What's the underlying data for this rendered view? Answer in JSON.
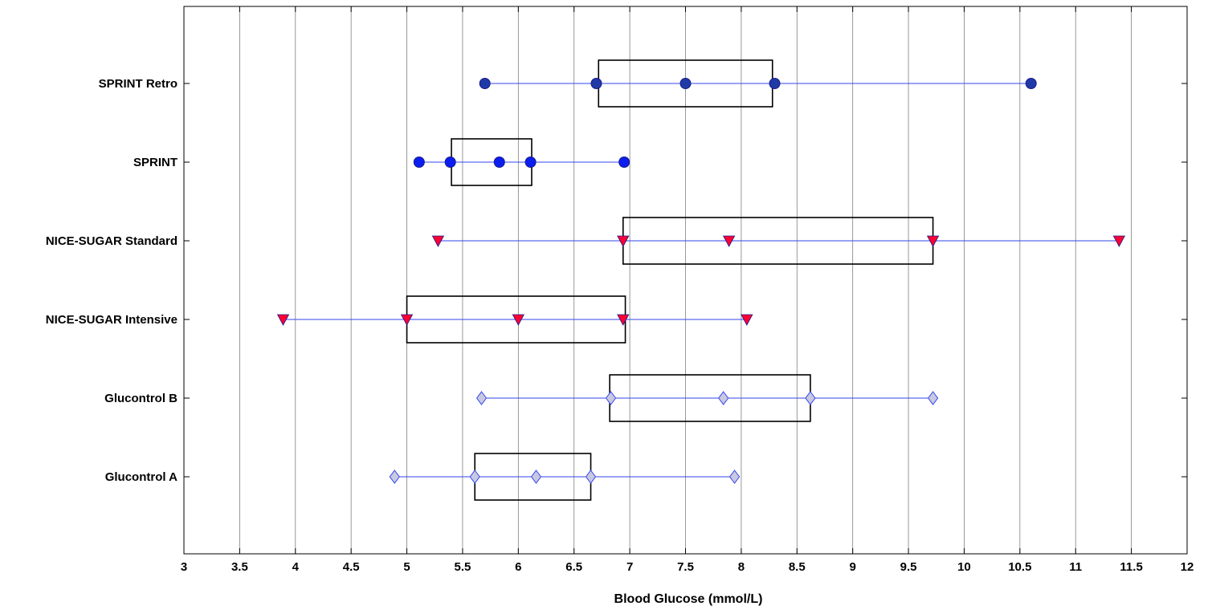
{
  "chart_data": {
    "type": "box",
    "xlabel": "Blood Glucose (mmol/L)",
    "xlim": [
      3,
      12
    ],
    "x_ticks": [
      3,
      3.5,
      4,
      4.5,
      5,
      5.5,
      6,
      6.5,
      7,
      7.5,
      8,
      8.5,
      9,
      9.5,
      10,
      10.5,
      11,
      11.5,
      12
    ],
    "x_tick_labels": [
      "3",
      "3.5",
      "4",
      "4.5",
      "5",
      "5.5",
      "6",
      "6.5",
      "7",
      "7.5",
      "8",
      "8.5",
      "9",
      "9.5",
      "10",
      "10.5",
      "11",
      "11.5",
      "12"
    ],
    "grid": "vertical",
    "categories": [
      "SPRINT Retro",
      "SPRINT",
      "NICE-SUGAR Standard",
      "NICE-SUGAR Intensive",
      "Glucontrol B",
      "Glucontrol A"
    ],
    "series": [
      {
        "category": "SPRINT Retro",
        "marker": "circle",
        "fill": "#1f3aa6",
        "values": [
          5.7,
          6.7,
          7.5,
          8.3,
          10.6
        ],
        "box": [
          6.72,
          8.28
        ]
      },
      {
        "category": "SPRINT",
        "marker": "circle",
        "fill": "#0a1ef0",
        "values": [
          5.11,
          5.39,
          5.83,
          6.11,
          6.95
        ],
        "box": [
          5.4,
          6.12
        ]
      },
      {
        "category": "NICE-SUGAR Standard",
        "marker": "triangle-down",
        "fill": "#ff0033",
        "values": [
          5.28,
          6.94,
          7.89,
          9.72,
          11.39
        ],
        "box": [
          6.94,
          9.72
        ]
      },
      {
        "category": "NICE-SUGAR Intensive",
        "marker": "triangle-down",
        "fill": "#ff0033",
        "values": [
          3.89,
          5.0,
          6.0,
          6.94,
          8.05
        ],
        "box": [
          5.0,
          6.96
        ]
      },
      {
        "category": "Glucontrol B",
        "marker": "diamond",
        "fill": "#c8c8e0",
        "values": [
          5.67,
          6.83,
          7.84,
          8.62,
          9.72
        ],
        "box": [
          6.82,
          8.62
        ]
      },
      {
        "category": "Glucontrol A",
        "marker": "diamond",
        "fill": "#c8c8e0",
        "values": [
          4.89,
          5.61,
          6.16,
          6.65,
          7.94
        ],
        "box": [
          5.61,
          6.65
        ]
      }
    ],
    "colors": {
      "whisker_line": "#3344ee",
      "marker_stroke": "#1a1a8a",
      "box_stroke": "#000000",
      "grid": "#808080"
    }
  }
}
